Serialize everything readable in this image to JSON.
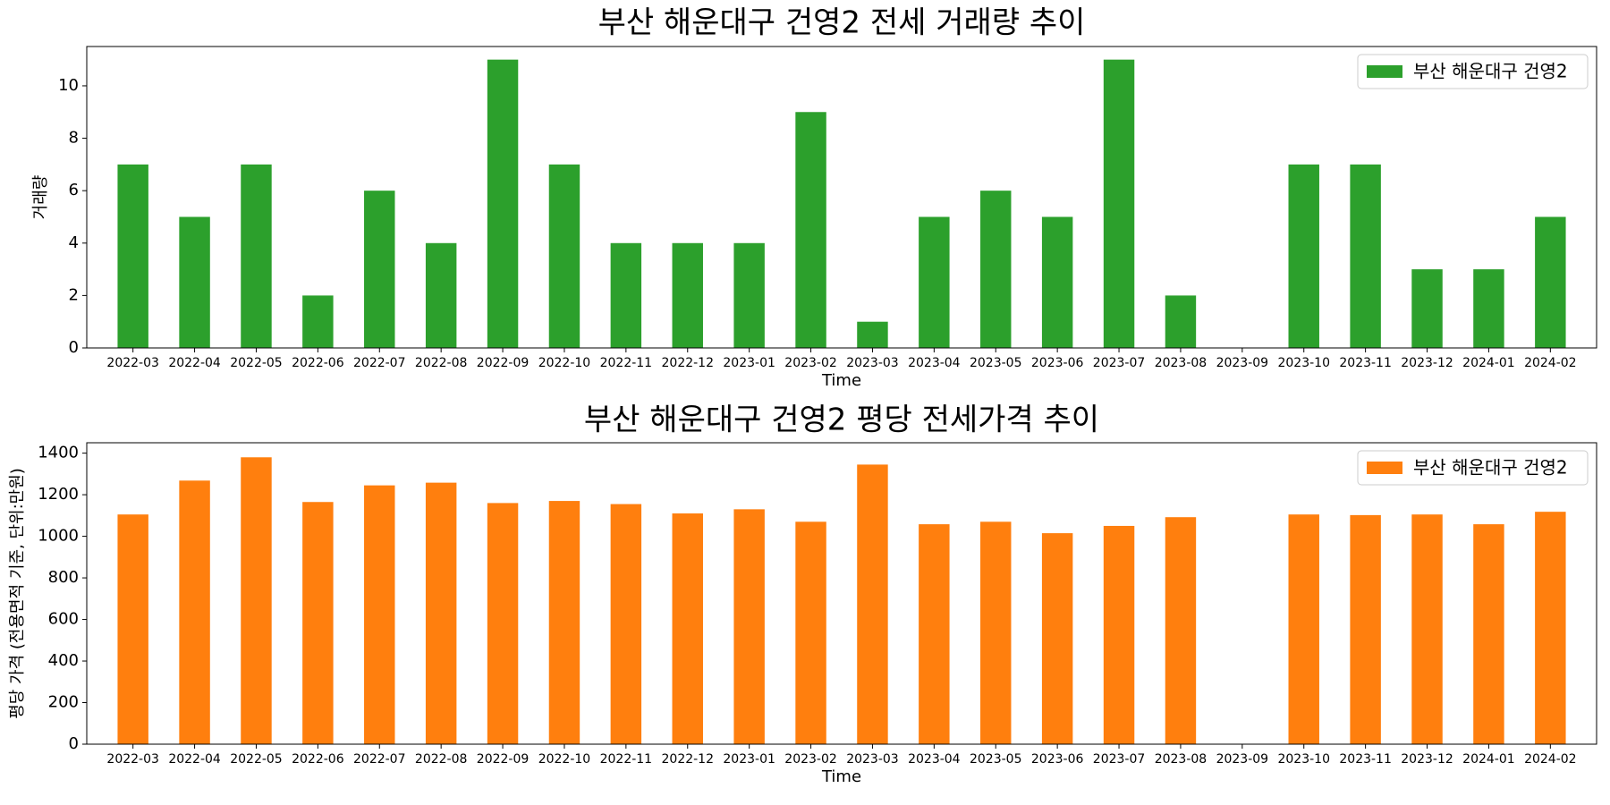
{
  "chart_data": [
    {
      "type": "bar",
      "title": "부산 해운대구 건영2 전세 거래량 추이",
      "xlabel": "Time",
      "ylabel": "거래량",
      "ylim": [
        0,
        11.5
      ],
      "yticks": [
        0,
        2,
        4,
        6,
        8,
        10
      ],
      "legend_position": "top-right",
      "grid": false,
      "categories": [
        "2022-03",
        "2022-04",
        "2022-05",
        "2022-06",
        "2022-07",
        "2022-08",
        "2022-09",
        "2022-10",
        "2022-11",
        "2022-12",
        "2023-01",
        "2023-02",
        "2023-03",
        "2023-04",
        "2023-05",
        "2023-06",
        "2023-07",
        "2023-08",
        "2023-09",
        "2023-10",
        "2023-11",
        "2023-12",
        "2024-01",
        "2024-02"
      ],
      "series": [
        {
          "name": "부산 해운대구 건영2",
          "color": "#2ca02c",
          "values": [
            7,
            5,
            7,
            2,
            6,
            4,
            11,
            7,
            4,
            4,
            4,
            9,
            1,
            5,
            6,
            5,
            11,
            2,
            null,
            7,
            7,
            3,
            3,
            5
          ]
        }
      ]
    },
    {
      "type": "bar",
      "title": "부산 해운대구 건영2 평당 전세가격 추이",
      "xlabel": "Time",
      "ylabel": "평당 가격 (전용면적 기준, 단위:만원)",
      "ylim": [
        0,
        1450
      ],
      "yticks": [
        0,
        200,
        400,
        600,
        800,
        1000,
        1200,
        1400
      ],
      "legend_position": "top-right",
      "grid": false,
      "categories": [
        "2022-03",
        "2022-04",
        "2022-05",
        "2022-06",
        "2022-07",
        "2022-08",
        "2022-09",
        "2022-10",
        "2022-11",
        "2022-12",
        "2023-01",
        "2023-02",
        "2023-03",
        "2023-04",
        "2023-05",
        "2023-06",
        "2023-07",
        "2023-08",
        "2023-09",
        "2023-10",
        "2023-11",
        "2023-12",
        "2024-01",
        "2024-02"
      ],
      "series": [
        {
          "name": "부산 해운대구 건영2",
          "color": "#ff7f0e",
          "values": [
            1105,
            1268,
            1380,
            1165,
            1245,
            1258,
            1160,
            1170,
            1155,
            1110,
            1130,
            1070,
            1345,
            1058,
            1070,
            1015,
            1050,
            1092,
            null,
            1105,
            1102,
            1105,
            1058,
            1118
          ]
        }
      ]
    }
  ]
}
